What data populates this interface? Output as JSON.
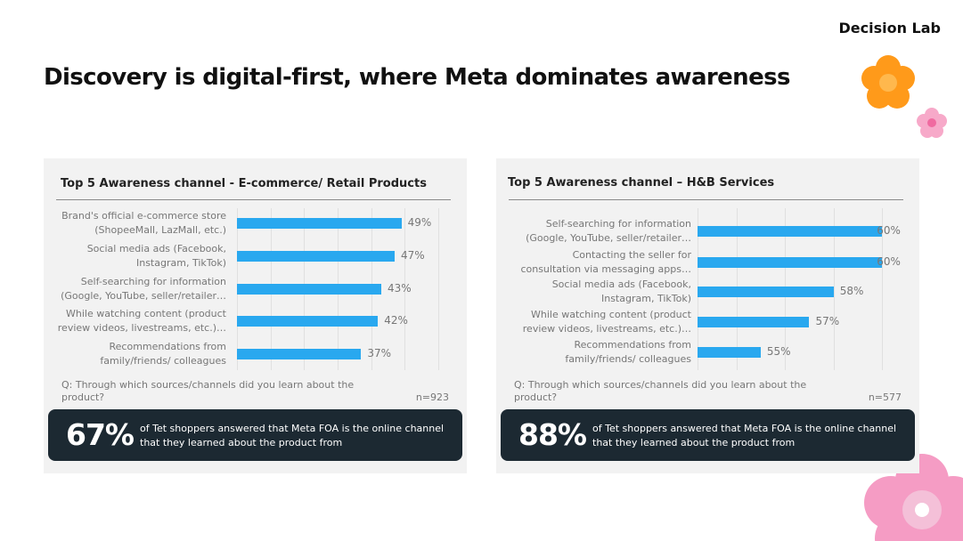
{
  "brand": "Decision Lab",
  "title": "Discovery is digital-first, where Meta dominates awareness",
  "colors": {
    "bar": "#29a8ef",
    "callout": "#1c2932",
    "card": "#f2f2f2"
  },
  "chart_data": [
    {
      "type": "bar",
      "orientation": "horizontal",
      "title": "Top 5 Awareness channel - E-commerce/ Retail Products",
      "categories": [
        "Brand's official e-commerce store\n(ShopeeMall, LazMall, etc.)",
        "Social media ads (Facebook,\nInstagram, TikTok)",
        "Self-searching for information\n(Google, YouTube, seller/retailer…",
        "While watching content (product\nreview videos, livestreams, etc.)…",
        "Recommendations from\nfamily/friends/ colleagues"
      ],
      "values": [
        49,
        47,
        43,
        42,
        37
      ],
      "value_labels": [
        "49%",
        "47%",
        "43%",
        "42%",
        "37%"
      ],
      "xlim": [
        0,
        60
      ],
      "grid_step": 10,
      "grid": true,
      "question": "Q: Through which sources/channels did you learn about the product?",
      "n": "n=923",
      "callout_value": "67%",
      "callout_text": "of Tet shoppers answered that Meta FOA is the online channel that they learned about the product from"
    },
    {
      "type": "bar",
      "orientation": "horizontal",
      "title": "Top 5 Awareness channel – H&B Services",
      "categories": [
        "Self-searching for information\n(Google, YouTube, seller/retailer…",
        "Contacting the seller for\nconsultation via messaging apps…",
        "Social media ads (Facebook,\nInstagram, TikTok)",
        "While watching content (product\nreview videos, livestreams, etc.)…",
        "Recommendations from\nfamily/friends/ colleagues"
      ],
      "values": [
        60,
        60,
        58,
        57,
        55
      ],
      "value_labels": [
        "60%",
        "60%",
        "58%",
        "57%",
        "55%"
      ],
      "xlim": [
        52.4,
        61.2
      ],
      "grid_step": 2,
      "grid": true,
      "question": "Q: Through which sources/channels did you learn about the product?",
      "n": "n=577",
      "callout_value": "88%",
      "callout_text": "of Tet shoppers answered that Meta FOA is the online channel that they learned about the product from"
    }
  ]
}
